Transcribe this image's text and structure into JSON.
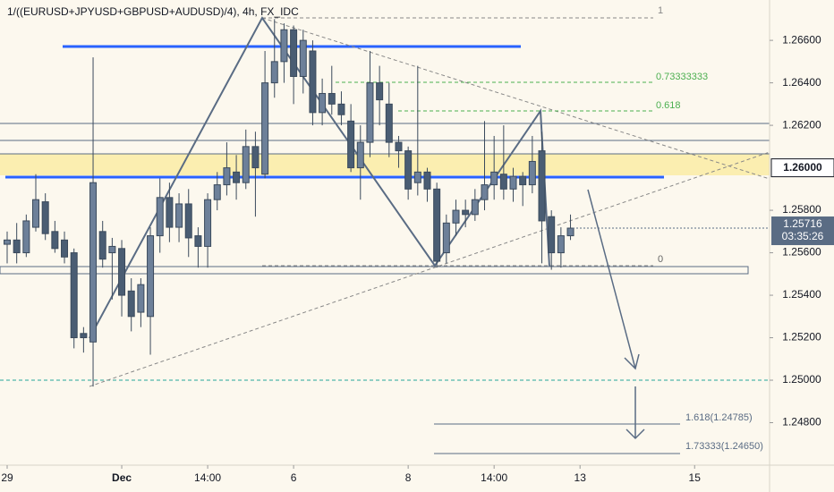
{
  "chart_data": {
    "type": "candlestick",
    "title": "1/((EURUSD+JPYUSD+GBPUSD+AUDUSD)/4), 4h, FX_IDC",
    "color": "#4a5d73",
    "xlim": [
      -0.75,
      79.85
    ],
    "xticks": [
      {
        "value": 0,
        "label": "29"
      },
      {
        "value": 12,
        "label": "Dec"
      },
      {
        "value": 21,
        "label": "14:00"
      },
      {
        "value": 30,
        "label": "6"
      },
      {
        "value": 42,
        "label": "8"
      },
      {
        "value": 51,
        "label": "14:00"
      },
      {
        "value": 60,
        "label": "13"
      },
      {
        "value": 72,
        "label": "15"
      }
    ],
    "ylim": [
      1.246,
      1.2679
    ],
    "yticks": [
      {
        "value": 1.248,
        "label": "1.24800"
      },
      {
        "value": 1.25,
        "label": "1.25000"
      },
      {
        "value": 1.252,
        "label": "1.25200"
      },
      {
        "value": 1.254,
        "label": "1.25400"
      },
      {
        "value": 1.256,
        "label": "1.25600"
      },
      {
        "value": 1.258,
        "label": "1.25800"
      },
      {
        "value": 1.262,
        "label": "1.26200"
      },
      {
        "value": 1.264,
        "label": "1.26400"
      },
      {
        "value": 1.266,
        "label": "1.26600"
      }
    ],
    "highlight_tick": {
      "value": 1.26,
      "label": "1.26000"
    },
    "last_price": {
      "value": 1.25716,
      "label": "1.25716"
    },
    "countdown": "03:35:26",
    "open": [
      1.2564,
      1.2566,
      1.256,
      1.2572,
      1.2584,
      1.257,
      1.2566,
      1.256,
      1.2522,
      1.2518,
      1.257,
      1.256,
      1.2562,
      1.2542,
      1.2532,
      1.253,
      1.2568,
      1.2586,
      1.2572,
      1.2583,
      1.2568,
      1.2563,
      1.2585,
      1.2592,
      1.2598,
      1.2593,
      1.261,
      1.2597,
      1.264,
      1.265,
      1.2665,
      1.2643,
      1.2655,
      1.2626,
      1.2635,
      1.263,
      1.2622,
      1.26,
      1.2612,
      1.264,
      1.263,
      1.2612,
      1.2608,
      1.2593,
      1.2598,
      1.259,
      1.256,
      1.2574,
      1.258,
      1.2578,
      1.2585,
      1.2592,
      1.2597,
      1.259,
      1.2596,
      1.2592,
      1.2608,
      1.2577,
      1.256,
      1.2568
    ],
    "high": [
      1.257,
      1.2574,
      1.2578,
      1.2597,
      1.2588,
      1.2575,
      1.257,
      1.2562,
      1.2525,
      1.2652,
      1.2575,
      1.2567,
      1.2566,
      1.2548,
      1.2548,
      1.2572,
      1.2595,
      1.2593,
      1.2588,
      1.259,
      1.2572,
      1.2588,
      1.2598,
      1.2612,
      1.2606,
      1.2618,
      1.2617,
      1.2655,
      1.267,
      1.2668,
      1.2667,
      1.2665,
      1.266,
      1.2642,
      1.2648,
      1.2636,
      1.263,
      1.262,
      1.2655,
      1.2648,
      1.264,
      1.2615,
      1.261,
      1.2648,
      1.26,
      1.2593,
      1.2578,
      1.2585,
      1.2585,
      1.259,
      1.2622,
      1.2615,
      1.262,
      1.26,
      1.2598,
      1.2615,
      1.2617,
      1.258,
      1.2572,
      1.2578
    ],
    "low": [
      1.2555,
      1.2555,
      1.2558,
      1.257,
      1.2566,
      1.256,
      1.2555,
      1.2515,
      1.2513,
      1.2497,
      1.2553,
      1.2538,
      1.253,
      1.2523,
      1.2525,
      1.2512,
      1.256,
      1.2565,
      1.2565,
      1.2558,
      1.2553,
      1.2553,
      1.258,
      1.2587,
      1.2585,
      1.259,
      1.2577,
      1.2595,
      1.2633,
      1.264,
      1.263,
      1.2635,
      1.262,
      1.262,
      1.2625,
      1.262,
      1.2598,
      1.2585,
      1.2605,
      1.262,
      1.2605,
      1.26,
      1.2585,
      1.2587,
      1.2584,
      1.2553,
      1.2555,
      1.2568,
      1.2572,
      1.2575,
      1.258,
      1.2585,
      1.2585,
      1.2584,
      1.2582,
      1.2588,
      1.2555,
      1.2552,
      1.2553,
      1.2566
    ],
    "close": [
      1.2566,
      1.256,
      1.2575,
      1.2585,
      1.2569,
      1.2562,
      1.2558,
      1.252,
      1.252,
      1.2593,
      1.2557,
      1.2563,
      1.254,
      1.253,
      1.2545,
      1.2568,
      1.2586,
      1.2572,
      1.2583,
      1.2567,
      1.2563,
      1.2585,
      1.2592,
      1.26,
      1.2593,
      1.261,
      1.26,
      1.264,
      1.265,
      1.2665,
      1.2643,
      1.266,
      1.2626,
      1.2635,
      1.263,
      1.2625,
      1.26,
      1.2612,
      1.264,
      1.2632,
      1.2612,
      1.2608,
      1.259,
      1.2598,
      1.259,
      1.2556,
      1.2574,
      1.258,
      1.2578,
      1.2585,
      1.2592,
      1.2598,
      1.259,
      1.2596,
      1.2592,
      1.2603,
      1.2575,
      1.256,
      1.2568,
      1.25716
    ],
    "annotations": [
      "1",
      "0.73333333",
      "0.618",
      "0",
      "1.618(1.24785)",
      "1.73333(1.24650)"
    ]
  }
}
